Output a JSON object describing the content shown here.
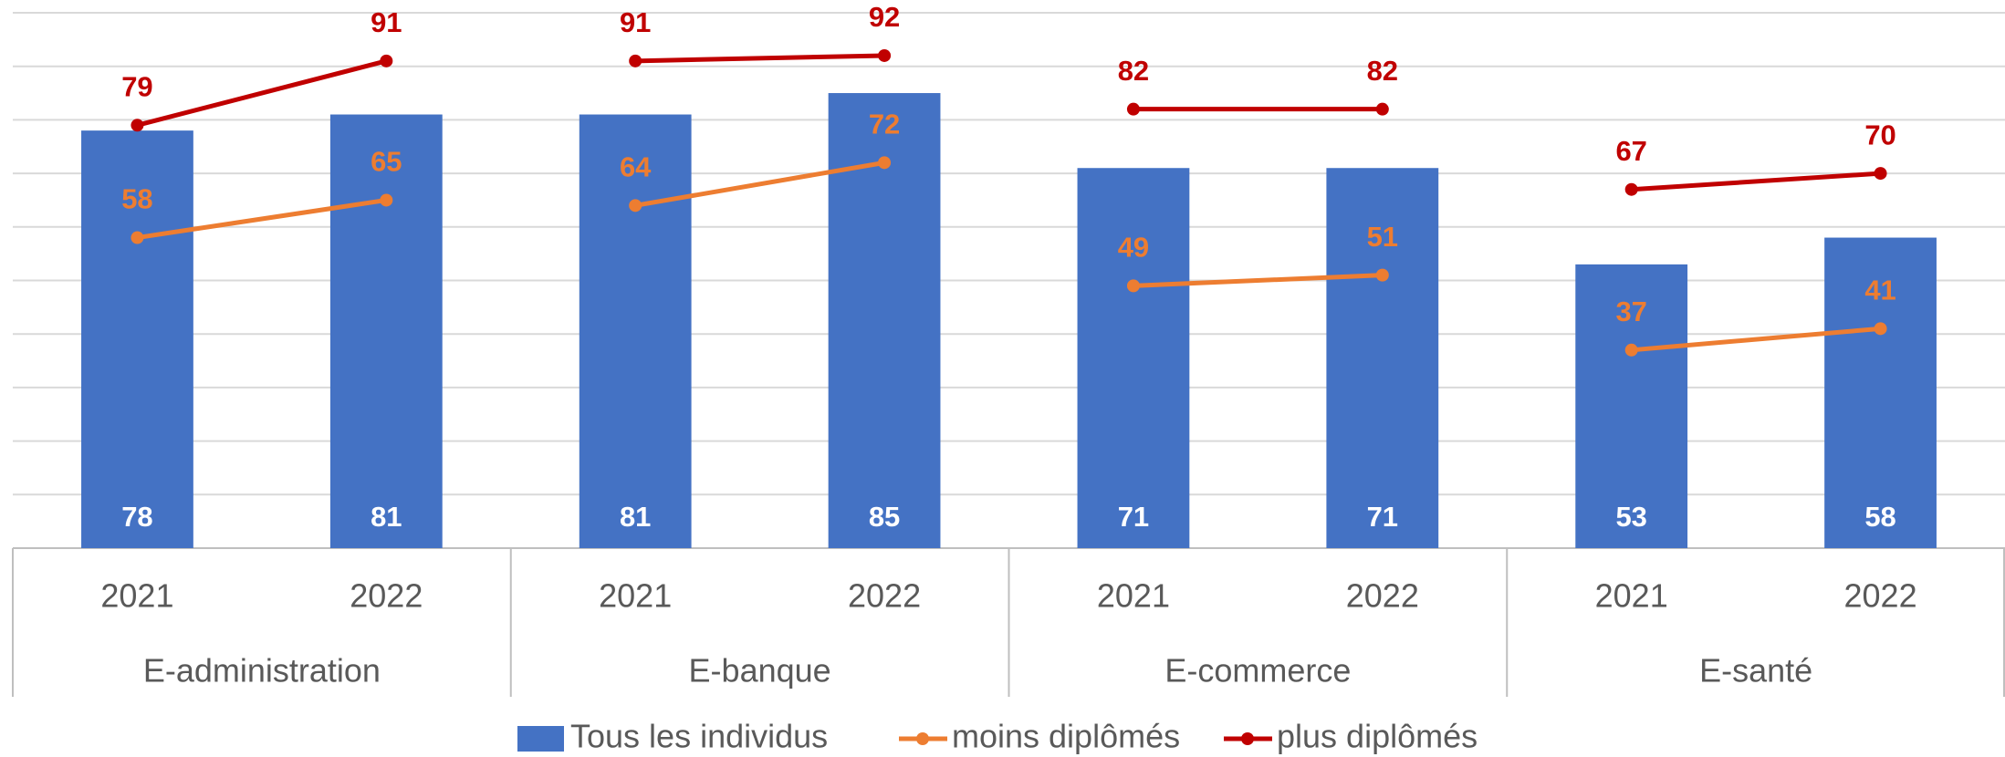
{
  "chart_data": {
    "type": "bar",
    "categories": [
      "2021",
      "2022",
      "2021",
      "2022",
      "2021",
      "2022",
      "2021",
      "2022"
    ],
    "groups": [
      "E-administration",
      "E-banque",
      "E-commerce",
      "E-santé"
    ],
    "series": [
      {
        "name": "Tous les individus",
        "kind": "bar",
        "color": "#4472c4",
        "values": [
          78,
          81,
          81,
          85,
          71,
          71,
          53,
          58
        ]
      },
      {
        "name": "moins diplômés",
        "kind": "line",
        "color": "#ed7d31",
        "values": [
          58,
          65,
          64,
          72,
          49,
          51,
          37,
          41
        ]
      },
      {
        "name": "plus diplômés",
        "kind": "line",
        "color": "#c00000",
        "values": [
          79,
          91,
          91,
          92,
          82,
          82,
          67,
          70
        ]
      }
    ],
    "ylim": [
      0,
      100
    ],
    "yticks": [
      0,
      10,
      20,
      30,
      40,
      50,
      60,
      70,
      80,
      90,
      100
    ],
    "grid": true,
    "legend": "bottom"
  }
}
